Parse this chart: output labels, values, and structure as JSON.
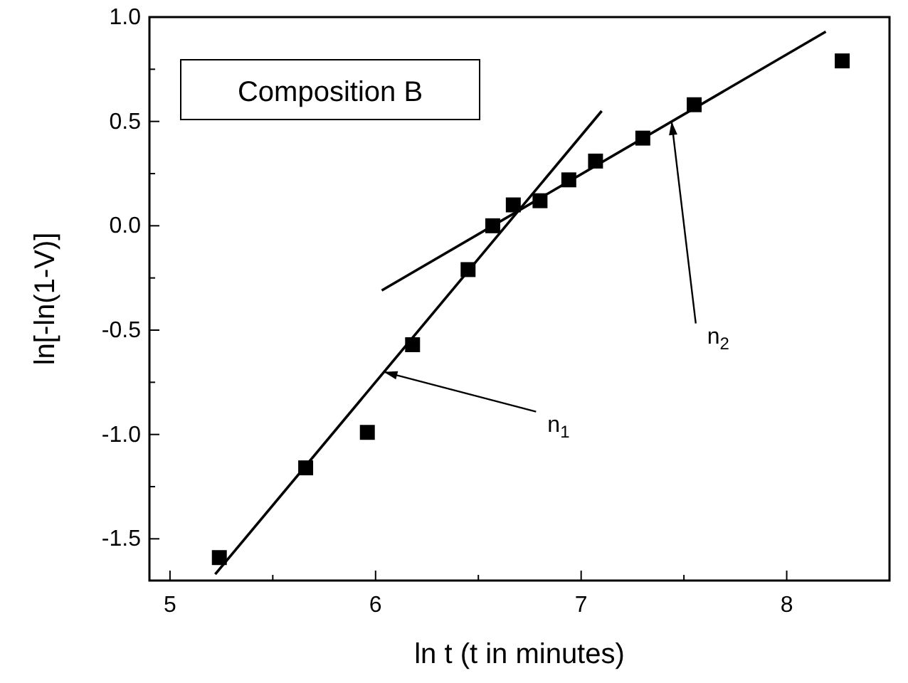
{
  "chart_data": {
    "type": "scatter",
    "xlabel": "ln t (t in minutes)",
    "ylabel": "ln[-ln(1-V)]",
    "grid": false,
    "xlim": [
      4.9,
      8.5
    ],
    "xticks": [
      5,
      {
        "value": 5.5,
        "label": null
      },
      6,
      {
        "value": 6.5,
        "label": null
      },
      7,
      {
        "value": 7.5,
        "label": null
      },
      8
    ],
    "ylim": [
      -1.7,
      1.0
    ],
    "yticks": [
      {
        "value": -1.5,
        "label": "-1.5"
      },
      {
        "value": -1.25,
        "label": null
      },
      {
        "value": -1,
        "label": "-1.0"
      },
      {
        "value": -0.75,
        "label": null
      },
      {
        "value": -0.5,
        "label": "-0.5"
      },
      {
        "value": -0.25,
        "label": null
      },
      {
        "value": 0,
        "label": "0.0"
      },
      {
        "value": 0.25,
        "label": null
      },
      {
        "value": 0.5,
        "label": "0.5"
      },
      {
        "value": 0.75,
        "label": null
      },
      {
        "value": 1,
        "label": "1.0"
      }
    ],
    "series": [
      {
        "marker": "square",
        "color": "#000000",
        "x": [
          5.24,
          5.66,
          5.96,
          6.18,
          6.45,
          6.57,
          6.67,
          6.8,
          6.94,
          7.07,
          7.3,
          7.55,
          8.27
        ],
        "values": [
          -1.59,
          -1.16,
          -0.99,
          -0.57,
          -0.21,
          0.0,
          0.1,
          0.12,
          0.22,
          0.31,
          0.42,
          0.58,
          0.79
        ]
      },
      {
        "type": "line",
        "marker": "none",
        "color": "#000000",
        "x": [
          5.22,
          7.1
        ],
        "values": [
          -1.67,
          0.55
        ]
      },
      {
        "type": "line",
        "marker": "none",
        "color": "#000000",
        "x": [
          6.03,
          8.19
        ],
        "values": [
          -0.31,
          0.93
        ]
      }
    ],
    "annotations": [
      "Composition B",
      {
        "text": "n$_{1}$",
        "x": 6.04,
        "y": -0.7
      },
      {
        "text": "n$_{2}$",
        "x": 7.44,
        "y": 0.5
      }
    ]
  }
}
